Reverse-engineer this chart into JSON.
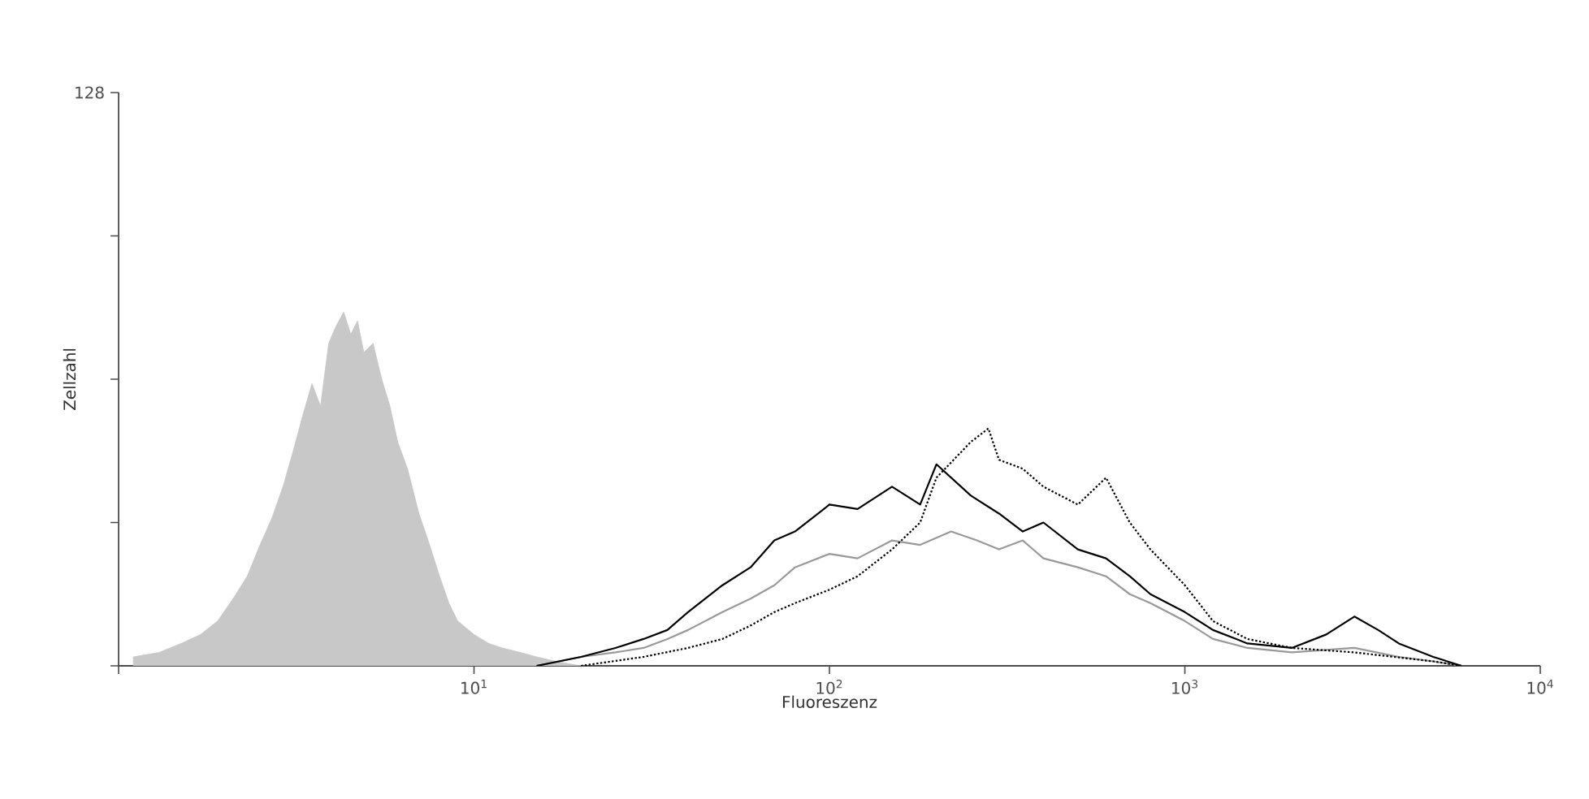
{
  "chart_data": {
    "type": "line",
    "xlabel": "Fluoreszenz",
    "ylabel": "Zellzahl",
    "log": "x",
    "xlim": [
      1,
      10000
    ],
    "ylim": [
      0,
      128
    ],
    "xticks": [
      {
        "value": 1,
        "label": null
      },
      {
        "value": 10,
        "label": "10$^{1}$"
      },
      {
        "value": 100,
        "label": "10$^{2}$"
      },
      {
        "value": 1000,
        "label": "10$^{3}$"
      },
      {
        "value": 10000,
        "label": "10$^{4}$"
      }
    ],
    "yticks": [
      {
        "value": 0,
        "label": null
      },
      {
        "value": 32,
        "label": null
      },
      {
        "value": 64,
        "label": null
      },
      {
        "value": 96,
        "label": null
      },
      128
    ],
    "series": [
      {
        "type": "area",
        "color": "#c8c8c8",
        "x": [
          1.1,
          1.3,
          1.5,
          1.7,
          1.9,
          2.1,
          2.3,
          2.5,
          2.7,
          2.9,
          3.1,
          3.3,
          3.5,
          3.7,
          3.9,
          4.1,
          4.3,
          4.5,
          4.7,
          4.9,
          5.2,
          5.5,
          5.8,
          6.1,
          6.5,
          7,
          7.5,
          8,
          8.5,
          9,
          10,
          11,
          12,
          13.5,
          15,
          17,
          20
        ],
        "values": [
          2,
          3,
          5,
          7,
          10,
          15,
          20,
          27,
          33,
          40,
          48,
          56,
          63,
          58,
          72,
          76,
          79,
          74,
          77,
          70,
          72,
          64,
          58,
          50,
          44,
          34,
          27,
          20,
          14,
          10,
          7,
          5,
          4,
          3,
          2,
          1,
          0
        ]
      },
      {
        "line_style": "solid",
        "color": "#999999",
        "x": [
          15,
          20,
          25,
          30,
          35,
          40,
          50,
          60,
          70,
          80,
          100,
          120,
          150,
          180,
          220,
          260,
          300,
          350,
          400,
          500,
          600,
          700,
          800,
          1000,
          1200,
          1500,
          2000,
          3000,
          4000,
          5000,
          6000
        ],
        "values": [
          0,
          2,
          3,
          4,
          6,
          8,
          12,
          15,
          18,
          22,
          25,
          24,
          28,
          27,
          30,
          28,
          26,
          28,
          24,
          22,
          20,
          16,
          14,
          10,
          6,
          4,
          3,
          4,
          2,
          1,
          0
        ]
      },
      {
        "line_style": "solid",
        "color": "#000000",
        "x": [
          15,
          20,
          25,
          30,
          35,
          40,
          50,
          60,
          70,
          80,
          100,
          120,
          150,
          180,
          200,
          250,
          300,
          350,
          400,
          500,
          600,
          700,
          800,
          1000,
          1200,
          1500,
          2000,
          2500,
          3000,
          3500,
          4000,
          5000,
          6000
        ],
        "values": [
          0,
          2,
          4,
          6,
          8,
          12,
          18,
          22,
          28,
          30,
          36,
          35,
          40,
          36,
          45,
          38,
          34,
          30,
          32,
          26,
          24,
          20,
          16,
          12,
          8,
          5,
          4,
          7,
          11,
          8,
          5,
          2,
          0
        ]
      },
      {
        "line_style": "dotted",
        "color": "#000000",
        "x": [
          20,
          30,
          40,
          50,
          60,
          70,
          80,
          100,
          120,
          150,
          180,
          200,
          250,
          280,
          300,
          350,
          400,
          500,
          600,
          700,
          800,
          1000,
          1200,
          1500,
          2000,
          3000,
          5000,
          6000
        ],
        "values": [
          0,
          2,
          4,
          6,
          9,
          12,
          14,
          17,
          20,
          26,
          32,
          42,
          50,
          53,
          46,
          44,
          40,
          36,
          42,
          32,
          26,
          18,
          10,
          6,
          4,
          3,
          1,
          0
        ]
      }
    ]
  }
}
